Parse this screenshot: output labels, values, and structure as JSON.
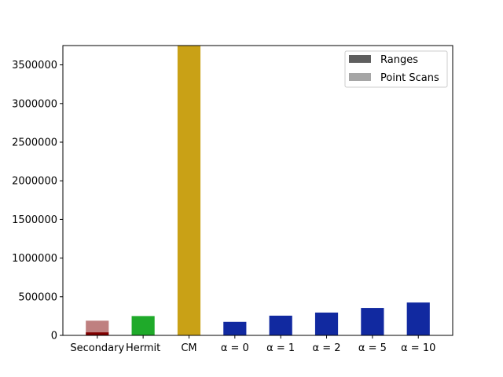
{
  "chart_data": {
    "type": "bar",
    "categories": [
      "Secondary",
      "Hermit",
      "CM",
      "α = 0",
      "α = 1",
      "α = 2",
      "α = 5",
      "α = 10"
    ],
    "series": [
      {
        "name": "Ranges",
        "values": [
          40000,
          0,
          0,
          0,
          0,
          0,
          0,
          0
        ]
      },
      {
        "name": "Point Scans",
        "values": [
          150000,
          250000,
          3750000,
          175000,
          255000,
          295000,
          355000,
          425000
        ]
      }
    ],
    "bar_colors": {
      "ranges": [
        "#800000",
        "#1faa2a",
        "#c9a116",
        "#1129a0",
        "#1129a0",
        "#1129a0",
        "#1129a0",
        "#1129a0"
      ],
      "point_scans": [
        "#bf8080",
        "#1faa2a",
        "#c9a116",
        "#1129a0",
        "#1129a0",
        "#1129a0",
        "#1129a0",
        "#1129a0"
      ]
    },
    "legend_colors": {
      "ranges": "#5f5f5f",
      "point_scans": "#a6a6a6"
    },
    "yticks": [
      0,
      500000,
      1000000,
      1500000,
      2000000,
      2500000,
      3000000,
      3500000
    ],
    "ytick_labels": [
      "0",
      "500000",
      "1000000",
      "1500000",
      "2000000",
      "2500000",
      "3000000",
      "3500000"
    ],
    "ylim": [
      0,
      3750000
    ],
    "title": "",
    "xlabel": "",
    "ylabel": "",
    "legend_position": "upper-right",
    "grid": false
  }
}
